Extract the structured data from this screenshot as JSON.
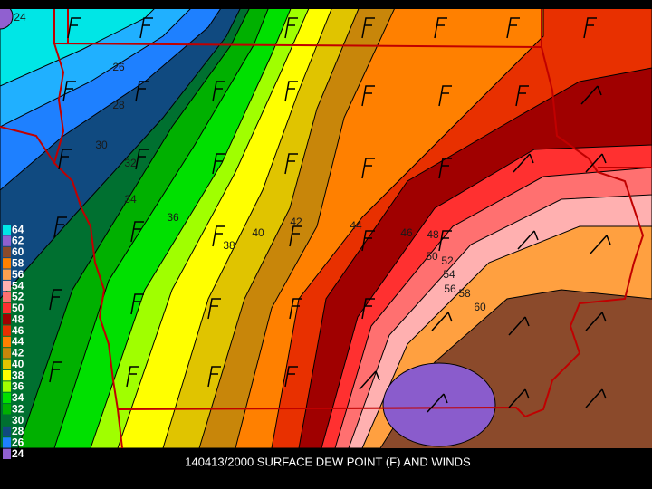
{
  "caption": "140413/2000 SURFACE DEW POINT (F) AND WINDS",
  "legend": {
    "levels": [
      64,
      62,
      60,
      58,
      56,
      54,
      52,
      50,
      48,
      46,
      44,
      42,
      40,
      38,
      36,
      34,
      32,
      30,
      28,
      26,
      24
    ],
    "colors": [
      "#00e6e6",
      "#9060d0",
      "#8b4a2b",
      "#ff8000",
      "#ffa050",
      "#ffb0b0",
      "#ff7070",
      "#ff3030",
      "#a00000",
      "#e83000",
      "#ff8000",
      "#c8860a",
      "#e0c400",
      "#ffff00",
      "#a0ff00",
      "#00e000",
      "#00b000",
      "#007030",
      "#104a80",
      "#1e80ff",
      "#9060d0"
    ]
  },
  "contour_labels": [
    24,
    26,
    28,
    30,
    32,
    34,
    36,
    38,
    40,
    42,
    44,
    46,
    48,
    50,
    52,
    54,
    56,
    58,
    60
  ]
}
